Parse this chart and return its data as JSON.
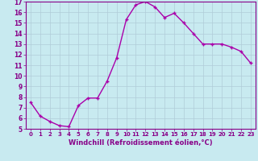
{
  "x": [
    0,
    1,
    2,
    3,
    4,
    5,
    6,
    7,
    8,
    9,
    10,
    11,
    12,
    13,
    14,
    15,
    16,
    17,
    18,
    19,
    20,
    21,
    22,
    23
  ],
  "y": [
    7.5,
    6.2,
    5.7,
    5.3,
    5.2,
    7.2,
    7.9,
    7.9,
    9.5,
    11.7,
    15.3,
    16.7,
    17.0,
    16.5,
    15.5,
    15.9,
    15.0,
    14.0,
    13.0,
    13.0,
    13.0,
    12.7,
    12.3,
    11.2
  ],
  "line_color": "#aa00aa",
  "marker": "+",
  "marker_size": 3.5,
  "marker_lw": 1.0,
  "bg_color": "#c8eaf0",
  "grid_color": "#b0ccd8",
  "xlabel": "Windchill (Refroidissement éolien,°C)",
  "ylabel": "",
  "xlim": [
    -0.5,
    23.5
  ],
  "ylim": [
    5,
    17
  ],
  "yticks": [
    5,
    6,
    7,
    8,
    9,
    10,
    11,
    12,
    13,
    14,
    15,
    16,
    17
  ],
  "xticks": [
    0,
    1,
    2,
    3,
    4,
    5,
    6,
    7,
    8,
    9,
    10,
    11,
    12,
    13,
    14,
    15,
    16,
    17,
    18,
    19,
    20,
    21,
    22,
    23
  ],
  "tick_color": "#880088",
  "label_color": "#880088",
  "spine_color": "#880088",
  "xlabel_fontsize": 6.0,
  "tick_fontsize": 5.5,
  "linewidth": 1.0
}
